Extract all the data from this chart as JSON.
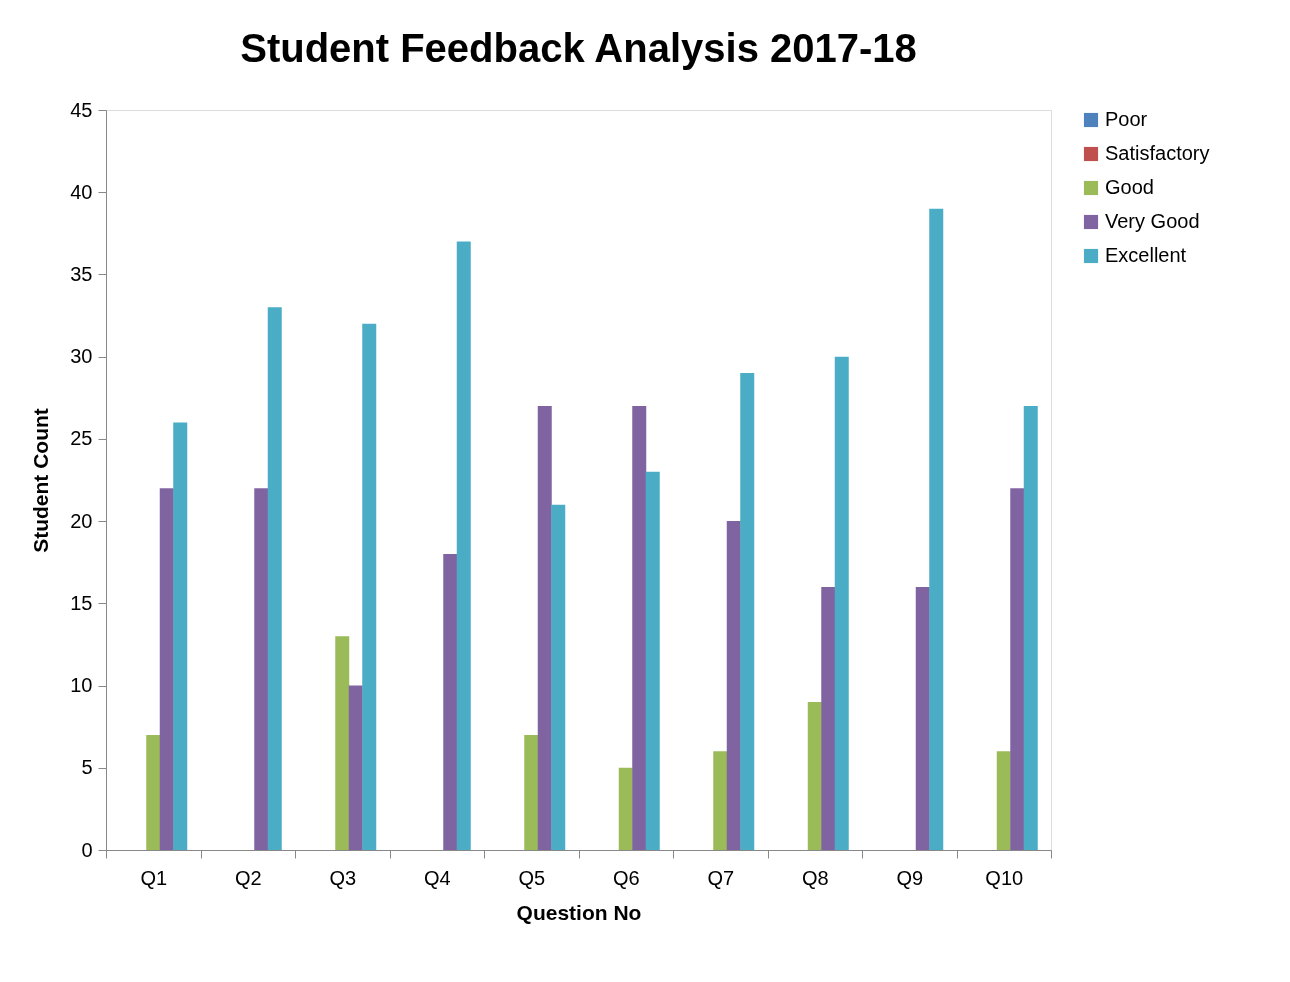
{
  "chart_data": {
    "type": "bar",
    "title": "Student Feedback Analysis 2017-18",
    "xlabel": "Question No",
    "ylabel": "Student Count",
    "categories": [
      "Q1",
      "Q2",
      "Q3",
      "Q4",
      "Q5",
      "Q6",
      "Q7",
      "Q8",
      "Q9",
      "Q10"
    ],
    "series": [
      {
        "name": "Poor",
        "color": "#4f81bd",
        "values": [
          0,
          0,
          0,
          0,
          0,
          0,
          0,
          0,
          0,
          0
        ]
      },
      {
        "name": "Satisfactory",
        "color": "#c0504d",
        "values": [
          0,
          0,
          0,
          0,
          0,
          0,
          0,
          0,
          0,
          0
        ]
      },
      {
        "name": "Good",
        "color": "#9bbb59",
        "values": [
          7,
          0,
          13,
          0,
          7,
          5,
          6,
          9,
          0,
          6
        ]
      },
      {
        "name": "Very Good",
        "color": "#8064a2",
        "values": [
          22,
          22,
          10,
          18,
          27,
          27,
          20,
          16,
          16,
          22
        ]
      },
      {
        "name": "Excellent",
        "color": "#4bacc6",
        "values": [
          26,
          33,
          32,
          37,
          21,
          23,
          29,
          30,
          39,
          27
        ]
      }
    ],
    "ylim": [
      0,
      45
    ],
    "yticks": [
      0,
      5,
      10,
      15,
      20,
      25,
      30,
      35,
      40,
      45
    ],
    "grid": false,
    "legend": "right"
  }
}
